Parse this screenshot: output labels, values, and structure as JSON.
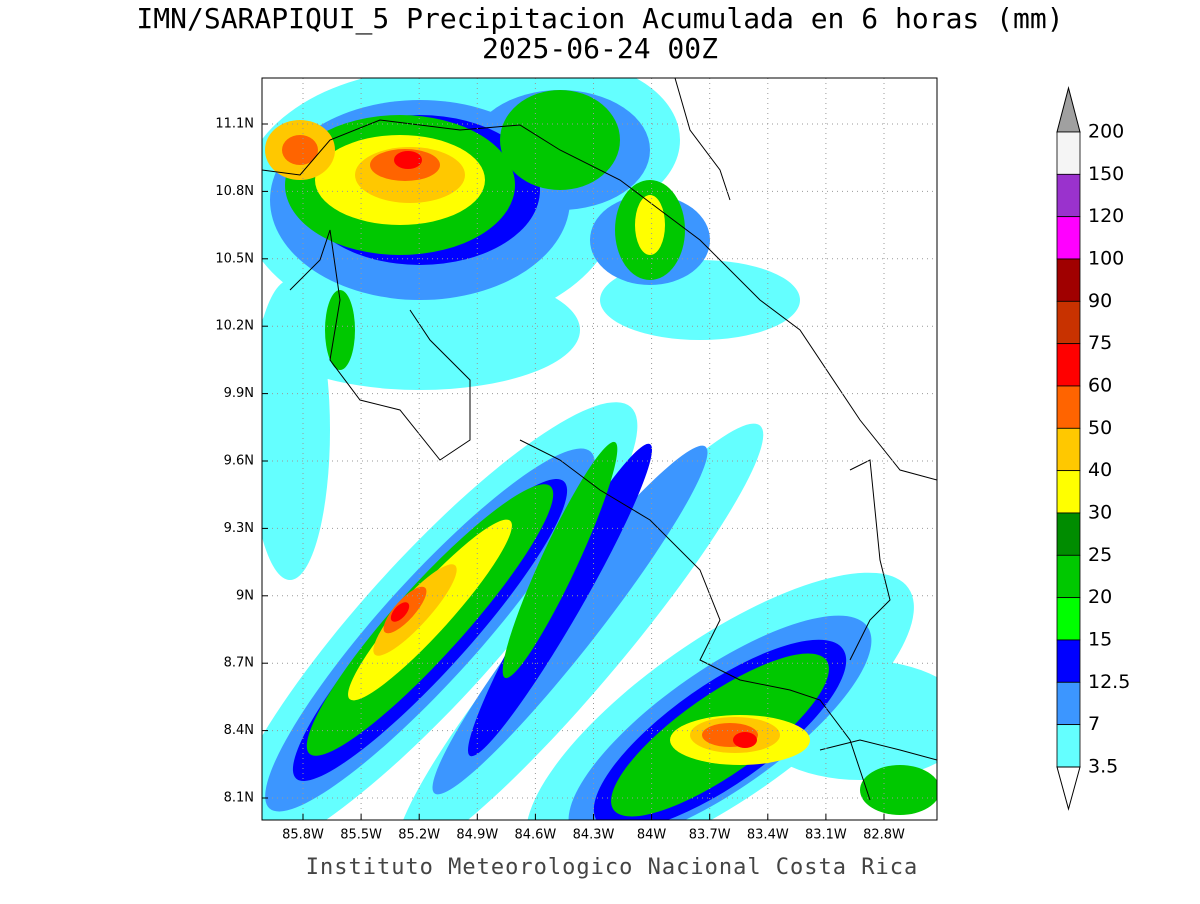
{
  "header": {
    "title": "IMN/SARAPIQUI_5 Precipitacion Acumulada en 6 horas (mm)",
    "subtitle": "2025-06-24 00Z"
  },
  "map": {
    "lat_ticks": [
      "11.1N",
      "10.8N",
      "10.5N",
      "10.2N",
      "9.9N",
      "9.6N",
      "9.3N",
      "9N",
      "8.7N",
      "8.4N",
      "8.1N"
    ],
    "lon_ticks": [
      "85.8W",
      "85.5W",
      "85.2W",
      "84.9W",
      "84.6W",
      "84.3W",
      "84W",
      "83.7W",
      "83.4W",
      "83.1W",
      "82.8W"
    ]
  },
  "colorbar": {
    "levels": [
      200,
      150,
      120,
      100,
      90,
      75,
      60,
      50,
      40,
      30,
      25,
      20,
      15,
      12.5,
      7,
      3.5
    ],
    "colors": [
      "#f5f5f5",
      "#9a32cd",
      "#ff00ff",
      "#a00000",
      "#c83200",
      "#ff0000",
      "#ff6400",
      "#ffc800",
      "#ffff00",
      "#008c00",
      "#00c800",
      "#00ff00",
      "#0000ff",
      "#3c96ff",
      "#64ffff"
    ],
    "over_color": "#a0a0a0",
    "under_color": "#ffffff"
  },
  "footer": "Instituto Meteorologico Nacional Costa Rica"
}
